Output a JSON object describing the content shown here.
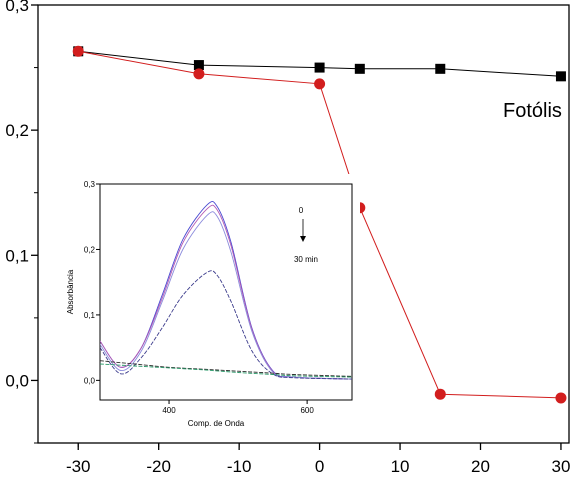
{
  "chart_data": [
    {
      "type": "line",
      "title": "",
      "xlabel": "",
      "ylabel": "",
      "xlim": [
        -35,
        31
      ],
      "ylim": [
        -0.05,
        0.3
      ],
      "xticks": [
        -30,
        -20,
        -10,
        0,
        10,
        20,
        30
      ],
      "xtick_labels": [
        "-30",
        "-20",
        "-10",
        "0",
        "10",
        "20",
        "30"
      ],
      "yticks": [
        0.0,
        0.1,
        0.2,
        0.3
      ],
      "ytick_labels": [
        "0,0",
        "0,1",
        "0,2",
        "0,3"
      ],
      "grid": false,
      "annotations": [
        {
          "text": "Fotólis"
        }
      ],
      "series": [
        {
          "marker": "square",
          "color": "#000000",
          "x": [
            -30,
            -15,
            0,
            5,
            15,
            30
          ],
          "y": [
            0.263,
            0.252,
            0.25,
            0.249,
            0.249,
            0.243
          ]
        },
        {
          "marker": "circle",
          "color": "#d21e1e",
          "x": [
            -30,
            -15,
            0,
            5,
            15,
            30
          ],
          "y": [
            0.263,
            0.245,
            0.237,
            0.138,
            -0.011,
            -0.014
          ]
        }
      ]
    },
    {
      "type": "line",
      "title": "",
      "xlabel": "Comp. de Onda",
      "ylabel": "Absorbância",
      "xlim": [
        300,
        665
      ],
      "ylim": [
        -0.03,
        0.3
      ],
      "xticks": [
        400,
        600
      ],
      "xtick_labels": [
        "400",
        "600"
      ],
      "yticks": [
        0.0,
        0.1,
        0.2,
        0.3
      ],
      "ytick_labels": [
        "0,0",
        "0,1",
        "0,2",
        "0,3"
      ],
      "annotations": [
        {
          "text": "0"
        },
        {
          "text": "30 min"
        }
      ],
      "series": [
        {
          "color": "#4b4bd2",
          "x": [
            300,
            330,
            360,
            390,
            420,
            455,
            470,
            490,
            520,
            550,
            580,
            665
          ],
          "y": [
            0.06,
            0.02,
            0.05,
            0.13,
            0.215,
            0.268,
            0.265,
            0.21,
            0.08,
            0.015,
            0.005,
            0.002
          ]
        },
        {
          "color": "#b45ab4",
          "x": [
            300,
            330,
            360,
            390,
            420,
            455,
            470,
            490,
            520,
            550,
            580,
            665
          ],
          "y": [
            0.06,
            0.02,
            0.05,
            0.125,
            0.21,
            0.262,
            0.26,
            0.205,
            0.078,
            0.014,
            0.005,
            0.002
          ]
        },
        {
          "color": "#8c8cdc",
          "x": [
            300,
            330,
            360,
            390,
            420,
            455,
            470,
            490,
            520,
            550,
            580,
            665
          ],
          "y": [
            0.055,
            0.015,
            0.045,
            0.12,
            0.2,
            0.252,
            0.25,
            0.195,
            0.075,
            0.013,
            0.005,
            0.002
          ]
        },
        {
          "color": "#3c3c8c",
          "x": [
            300,
            330,
            360,
            390,
            420,
            455,
            470,
            490,
            520,
            550,
            580,
            665
          ],
          "y": [
            0.05,
            0.01,
            0.035,
            0.08,
            0.13,
            0.165,
            0.16,
            0.12,
            0.045,
            0.01,
            0.004,
            0.002
          ]
        },
        {
          "color": "#2d2d2d",
          "x": [
            300,
            350,
            400,
            450,
            500,
            550,
            580,
            665
          ],
          "y": [
            0.03,
            0.025,
            0.02,
            0.017,
            0.014,
            0.011,
            0.009,
            0.006
          ]
        },
        {
          "color": "#2a9a6a",
          "x": [
            300,
            350,
            400,
            450,
            500,
            550,
            580,
            665
          ],
          "y": [
            0.025,
            0.022,
            0.019,
            0.016,
            0.012,
            0.009,
            0.007,
            0.005
          ]
        }
      ]
    }
  ]
}
